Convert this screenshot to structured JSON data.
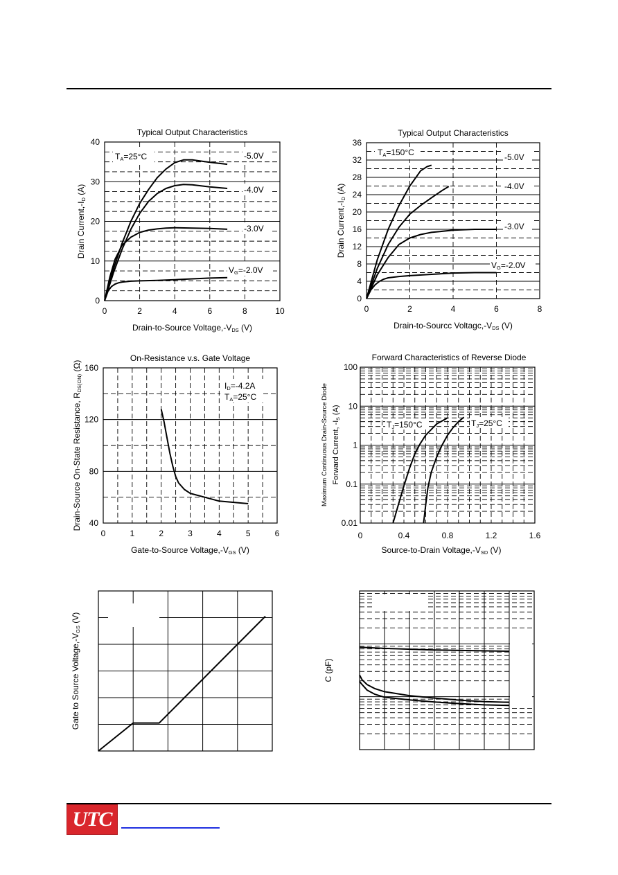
{
  "chart_data": [
    {
      "id": "c1",
      "type": "line",
      "title": "Typical Output Characteristics",
      "xlabel": "Drain-to-Source Voltage,-V",
      "xlabel_sub": "DS",
      "xlabel_suffix": " (V)",
      "ylabel": "Drain Current,-I",
      "ylabel_sub": "D",
      "ylabel_suffix": " (A)",
      "xlim": [
        0,
        10
      ],
      "ylim": [
        0,
        40
      ],
      "xticks": [
        "0",
        "2",
        "4",
        "6",
        "8",
        "10"
      ],
      "yticks": [
        "0",
        "10",
        "20",
        "30",
        "40"
      ],
      "grid": true,
      "annotation": {
        "main": "T",
        "sub": "A",
        "rest": "=25°C"
      },
      "series": [
        {
          "name": "-5.0V",
          "x": [
            0,
            0.5,
            1,
            1.5,
            2,
            2.5,
            3,
            3.5,
            4,
            4.5,
            5,
            5.5,
            6,
            7
          ],
          "y": [
            0,
            8,
            14.5,
            20,
            24.5,
            28,
            31,
            33.2,
            34.8,
            35.5,
            35.5,
            35.2,
            34.9,
            34.4
          ]
        },
        {
          "name": "-4.0V",
          "x": [
            0,
            0.5,
            1,
            1.5,
            2,
            2.5,
            3,
            3.5,
            4,
            4.5,
            5,
            6,
            7
          ],
          "y": [
            0,
            7,
            13,
            18,
            22,
            25,
            27,
            28.3,
            29,
            29.3,
            29.2,
            28.7,
            28.3
          ]
        },
        {
          "name": "-3.0V",
          "x": [
            0,
            0.3,
            0.6,
            1,
            1.5,
            2,
            2.5,
            3,
            3.5,
            4,
            5,
            6,
            7
          ],
          "y": [
            0,
            6,
            10.5,
            14,
            16,
            17.2,
            17.8,
            18.1,
            18.3,
            18.4,
            18.3,
            18.2,
            18
          ]
        },
        {
          "name": "V_G=-2.0V",
          "label_main": "V",
          "label_sub": "G",
          "label_rest": "=-2.0V",
          "x": [
            0,
            0.2,
            0.4,
            0.6,
            0.8,
            1,
            1.5,
            2,
            3,
            4,
            5,
            6,
            7
          ],
          "y": [
            0,
            2.5,
            3.6,
            4.2,
            4.5,
            4.7,
            4.9,
            5,
            5.1,
            5.3,
            5.5,
            5.7,
            5.8
          ]
        }
      ]
    },
    {
      "id": "c2",
      "type": "line",
      "title": "Typical Output Characteristics",
      "xlabel": "Drain-to-Sourcc Voltagc,-V",
      "xlabel_sub": "DS",
      "xlabel_suffix": " (V)",
      "ylabel": "Drain Current,-I",
      "ylabel_sub": "D",
      "ylabel_suffix": " (A)",
      "xlim": [
        0,
        8
      ],
      "ylim": [
        0,
        36
      ],
      "xticks": [
        "0",
        "2",
        "4",
        "6",
        "8"
      ],
      "yticks": [
        "0",
        "4",
        "8",
        "12",
        "16",
        "20",
        "24",
        "28",
        "32",
        "36"
      ],
      "grid": true,
      "annotation": {
        "main": "T",
        "sub": "A",
        "rest": "=150°C"
      },
      "series": [
        {
          "name": "-5.0V",
          "x": [
            0,
            0.5,
            1,
            1.5,
            2,
            2.5,
            2.8,
            3
          ],
          "y": [
            0,
            9,
            16,
            21.5,
            26,
            29.5,
            30.5,
            30.8
          ]
        },
        {
          "name": "-4.0V",
          "x": [
            0,
            0.5,
            1,
            1.5,
            2,
            2.5,
            3,
            3.5,
            3.8
          ],
          "y": [
            0,
            7,
            12.5,
            16.5,
            19.5,
            21.5,
            23.3,
            25,
            25.9
          ]
        },
        {
          "name": "-3.0V",
          "x": [
            0,
            0.5,
            1,
            1.5,
            2,
            2.5,
            3,
            4,
            5,
            6
          ],
          "y": [
            0,
            5.5,
            9.5,
            12.5,
            14,
            14.8,
            15.3,
            15.8,
            16,
            16
          ]
        },
        {
          "name": "V_G=-2.0V",
          "label_main": "V",
          "label_sub": "G",
          "label_rest": "=-2.0V",
          "x": [
            0,
            0.2,
            0.4,
            0.6,
            0.8,
            1,
            1.5,
            2,
            3,
            4,
            5,
            6
          ],
          "y": [
            0,
            2,
            3.2,
            4,
            4.5,
            4.8,
            5.1,
            5.3,
            5.6,
            5.9,
            6,
            6
          ]
        }
      ]
    },
    {
      "id": "c3",
      "type": "line",
      "title": "On-Resistance v.s. Gate Voltage",
      "xlabel": "Gate-to-Source Voltage,-V",
      "xlabel_sub": "GS",
      "xlabel_suffix": " (V)",
      "ylabel": "Drain-Source On-State Resistance, R",
      "ylabel_sub": "DS(ON)",
      "ylabel_suffix": " (Ω)",
      "xlim": [
        0,
        6
      ],
      "ylim": [
        40,
        160
      ],
      "xticks": [
        "0",
        "1",
        "2",
        "3",
        "4",
        "5",
        "6"
      ],
      "yticks": [
        "40",
        "80",
        "120",
        "160"
      ],
      "grid": true,
      "annotations": [
        {
          "main": "I",
          "sub": "D",
          "rest": "=-4.2A"
        },
        {
          "main": "T",
          "sub": "A",
          "rest": "=25°C"
        }
      ],
      "series": [
        {
          "name": "",
          "x": [
            2,
            2.1,
            2.2,
            2.3,
            2.4,
            2.5,
            2.6,
            2.8,
            3,
            3.5,
            4,
            4.5,
            5
          ],
          "y": [
            128,
            118,
            106,
            94,
            84,
            76,
            71,
            66,
            63,
            60,
            57,
            56,
            55
          ]
        }
      ]
    },
    {
      "id": "c4",
      "type": "line",
      "title": "Forward Characteristics of Reverse Diode",
      "xlabel": "Source-to-Drain Voltage,-V",
      "xlabel_sub": "SD",
      "xlabel_suffix": " (V)",
      "ylabel_line1": "Maximum Continuous Drain-Source Diode",
      "ylabel": "Forward Current, -I",
      "ylabel_sub": "S",
      "ylabel_suffix": " (A)",
      "xlim": [
        0,
        1.6
      ],
      "ylim": [
        0.01,
        100
      ],
      "yscale": "log",
      "xticks": [
        "0",
        "0.4",
        "0.8",
        "1.2",
        "1.6"
      ],
      "yticks": [
        "0.01",
        "0.1",
        "1",
        "10",
        "100"
      ],
      "grid": true,
      "series": [
        {
          "name": "T_J=150°C",
          "label_main": "T",
          "label_sub": "J",
          "label_rest": "=150°C",
          "x": [
            0.3,
            0.35,
            0.4,
            0.45,
            0.5,
            0.55,
            0.6,
            0.7,
            0.8
          ],
          "y": [
            0.01,
            0.03,
            0.09,
            0.25,
            0.6,
            1.1,
            1.8,
            3.5,
            5
          ]
        },
        {
          "name": "T_J=25°C",
          "label_main": "T",
          "label_sub": "J",
          "label_rest": "=25°C",
          "x": [
            0.58,
            0.6,
            0.62,
            0.65,
            0.7,
            0.75,
            0.8,
            0.85,
            0.9,
            0.95
          ],
          "y": [
            0.01,
            0.03,
            0.08,
            0.2,
            0.5,
            1,
            1.8,
            2.8,
            4,
            5.2
          ]
        }
      ]
    },
    {
      "id": "c5",
      "type": "line",
      "title": "",
      "ylabel": "Gate to Source Voltage,-V",
      "ylabel_sub": "GS",
      "ylabel_suffix": " (V)",
      "grid": true,
      "series": [
        {
          "name": "",
          "x": [
            0,
            1,
            1.75,
            4.8
          ],
          "y": [
            0,
            1.05,
            1.05,
            5.05
          ]
        }
      ]
    },
    {
      "id": "c6",
      "type": "line",
      "title": "",
      "ylabel": "C (pF)",
      "yscale": "log",
      "grid": true,
      "series": [
        {
          "name": "",
          "x": [
            0,
            1,
            3,
            6
          ],
          "y": [
            0.645,
            0.638,
            0.628,
            0.62
          ]
        },
        {
          "name": "",
          "x": [
            0,
            0.1,
            0.3,
            0.6,
            1,
            2,
            3,
            4,
            5,
            6
          ],
          "y": [
            0.47,
            0.44,
            0.41,
            0.385,
            0.365,
            0.34,
            0.325,
            0.312,
            0.302,
            0.298
          ]
        },
        {
          "name": "",
          "x": [
            0,
            0.1,
            0.3,
            0.6,
            1,
            2,
            3,
            4,
            5,
            6
          ],
          "y": [
            0.43,
            0.41,
            0.375,
            0.35,
            0.33,
            0.313,
            0.3,
            0.29,
            0.282,
            0.278
          ]
        }
      ]
    }
  ],
  "footer": {
    "logo_text": "UTC",
    "logo_color": "#d9262c",
    "link_color": "#1f2fe0"
  }
}
